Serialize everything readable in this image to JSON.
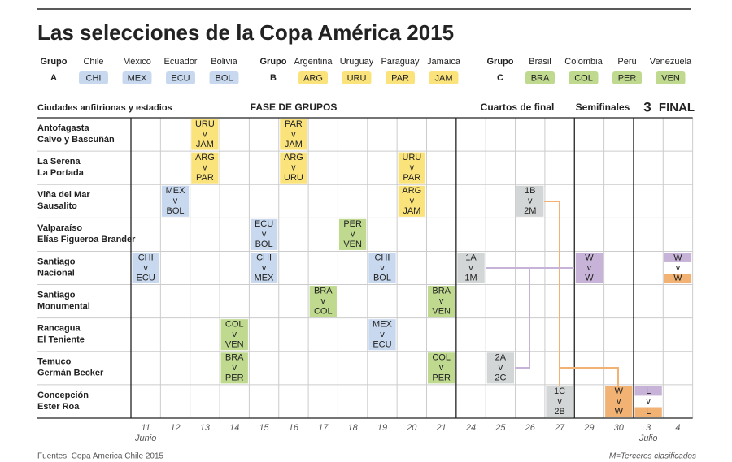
{
  "title": "Las selecciones de la Copa América 2015",
  "groups": [
    {
      "title": "Grupo",
      "label": "A",
      "color": "#c8d8ee",
      "teams": [
        {
          "name": "Chile",
          "code": "CHI"
        },
        {
          "name": "México",
          "code": "MEX"
        },
        {
          "name": "Ecuador",
          "code": "ECU"
        },
        {
          "name": "Bolivia",
          "code": "BOL"
        }
      ]
    },
    {
      "title": "Grupo",
      "label": "B",
      "color": "#fbe37c",
      "teams": [
        {
          "name": "Argentina",
          "code": "ARG"
        },
        {
          "name": "Uruguay",
          "code": "URU"
        },
        {
          "name": "Paraguay",
          "code": "PAR"
        },
        {
          "name": "Jamaica",
          "code": "JAM"
        }
      ]
    },
    {
      "title": "Grupo",
      "label": "C",
      "color": "#bfd98f",
      "teams": [
        {
          "name": "Brasil",
          "code": "BRA"
        },
        {
          "name": "Colombia",
          "code": "COL"
        },
        {
          "name": "Perú",
          "code": "PER"
        },
        {
          "name": "Venezuela",
          "code": "VEN"
        }
      ]
    }
  ],
  "header": {
    "cities": "Ciudades anfitrionas y estadios",
    "phases": [
      "FASE DE GRUPOS",
      "Cuartos de final",
      "Semifinales",
      "3",
      "FINAL"
    ]
  },
  "dates": [
    "11",
    "12",
    "13",
    "14",
    "15",
    "16",
    "17",
    "18",
    "19",
    "20",
    "21",
    "24",
    "25",
    "26",
    "27",
    "29",
    "30",
    "3",
    "4"
  ],
  "months": [
    "Junio",
    null,
    null,
    null,
    null,
    null,
    null,
    null,
    null,
    null,
    null,
    null,
    null,
    null,
    null,
    null,
    null,
    "Julio",
    null
  ],
  "rows": [
    {
      "city": "Antofagasta",
      "stadium": "Calvo y Bascuñán",
      "cells": [
        null,
        null,
        {
          "home": "URU",
          "vs": "v",
          "away": "JAM",
          "color": "#fbe37c"
        },
        null,
        null,
        {
          "home": "PAR",
          "vs": "v",
          "away": "JAM",
          "color": "#fbe37c"
        },
        null,
        null,
        null,
        null,
        null,
        null,
        null,
        null,
        null,
        null,
        null,
        null,
        null
      ]
    },
    {
      "city": "La Serena",
      "stadium": "La Portada",
      "cells": [
        null,
        null,
        {
          "home": "ARG",
          "vs": "v",
          "away": "PAR",
          "color": "#fbe37c"
        },
        null,
        null,
        {
          "home": "ARG",
          "vs": "v",
          "away": "URU",
          "color": "#fbe37c"
        },
        null,
        null,
        null,
        {
          "home": "URU",
          "vs": "v",
          "away": "PAR",
          "color": "#fbe37c"
        },
        null,
        null,
        null,
        null,
        null,
        null,
        null,
        null,
        null
      ]
    },
    {
      "city": "Viña del Mar",
      "stadium": "Sausalito",
      "cells": [
        null,
        {
          "home": "MEX",
          "vs": "v",
          "away": "BOL",
          "color": "#c8d8ee"
        },
        null,
        null,
        null,
        null,
        null,
        null,
        null,
        {
          "home": "ARG",
          "vs": "v",
          "away": "JAM",
          "color": "#fbe37c"
        },
        null,
        null,
        null,
        {
          "home": "1B",
          "vs": "v",
          "away": "2M",
          "color": "#d3d6d6"
        },
        null,
        null,
        null,
        null,
        null
      ]
    },
    {
      "city": "Valparaíso",
      "stadium": "Elías Figueroa Brander",
      "cells": [
        null,
        null,
        null,
        null,
        {
          "home": "ECU",
          "vs": "v",
          "away": "BOL",
          "color": "#c8d8ee"
        },
        null,
        null,
        {
          "home": "PER",
          "vs": "v",
          "away": "VEN",
          "color": "#bfd98f"
        },
        null,
        null,
        null,
        null,
        null,
        null,
        null,
        null,
        null,
        null,
        null
      ]
    },
    {
      "city": "Santiago",
      "stadium": "Nacional",
      "cells": [
        {
          "home": "CHI",
          "vs": "v",
          "away": "ECU",
          "color": "#c8d8ee"
        },
        null,
        null,
        null,
        {
          "home": "CHI",
          "vs": "v",
          "away": "MEX",
          "color": "#c8d8ee"
        },
        null,
        null,
        null,
        {
          "home": "CHI",
          "vs": "v",
          "away": "BOL",
          "color": "#c8d8ee"
        },
        null,
        null,
        {
          "home": "1A",
          "vs": "v",
          "away": "1M",
          "color": "#d3d6d6"
        },
        null,
        null,
        null,
        {
          "home": "W",
          "vs": "v",
          "away": "W",
          "color": "#c7b3d8"
        },
        null,
        null,
        {
          "home": "W",
          "vs": "v",
          "away": "W",
          "top_color": "#c7b3d8",
          "bottom_color": "#f1b274"
        }
      ]
    },
    {
      "city": "Santiago",
      "stadium": "Monumental",
      "cells": [
        null,
        null,
        null,
        null,
        null,
        null,
        {
          "home": "BRA",
          "vs": "v",
          "away": "COL",
          "color": "#bfd98f"
        },
        null,
        null,
        null,
        {
          "home": "BRA",
          "vs": "v",
          "away": "VEN",
          "color": "#bfd98f"
        },
        null,
        null,
        null,
        null,
        null,
        null,
        null,
        null
      ]
    },
    {
      "city": "Rancagua",
      "stadium": "El Teniente",
      "cells": [
        null,
        null,
        null,
        {
          "home": "COL",
          "vs": "v",
          "away": "VEN",
          "color": "#bfd98f"
        },
        null,
        null,
        null,
        null,
        {
          "home": "MEX",
          "vs": "v",
          "away": "ECU",
          "color": "#c8d8ee"
        },
        null,
        null,
        null,
        null,
        null,
        null,
        null,
        null,
        null,
        null
      ]
    },
    {
      "city": "Temuco",
      "stadium": "Germán Becker",
      "cells": [
        null,
        null,
        null,
        {
          "home": "BRA",
          "vs": "v",
          "away": "PER",
          "color": "#bfd98f"
        },
        null,
        null,
        null,
        null,
        null,
        null,
        {
          "home": "COL",
          "vs": "v",
          "away": "PER",
          "color": "#bfd98f"
        },
        null,
        {
          "home": "2A",
          "vs": "v",
          "away": "2C",
          "color": "#d3d6d6"
        },
        null,
        null,
        null,
        null,
        null,
        null
      ]
    },
    {
      "city": "Concepción",
      "stadium": "Ester Roa",
      "cells": [
        null,
        null,
        null,
        null,
        null,
        null,
        null,
        null,
        null,
        null,
        null,
        null,
        null,
        null,
        {
          "home": "1C",
          "vs": "v",
          "away": "2B",
          "color": "#d3d6d6"
        },
        null,
        {
          "home": "W",
          "vs": "v",
          "away": "W",
          "color": "#f1b274"
        },
        {
          "home": "L",
          "vs": "v",
          "away": "L",
          "top_color": "#c7b3d8",
          "bottom_color": "#f1b274"
        },
        null
      ]
    }
  ],
  "footer": {
    "source": "Fuentes: Copa America Chile 2015",
    "note": "M=Terceros clasificados"
  }
}
